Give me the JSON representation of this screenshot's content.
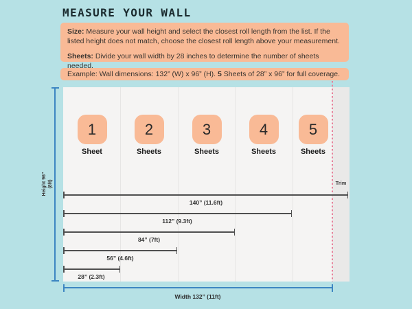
{
  "title": "MEASURE YOUR WALL",
  "instructions": {
    "size_label": "Size:",
    "size_text": " Measure your wall height and select the closest roll length from the list. If the listed height does not match, choose the closest roll length above your measurement.",
    "sheets_label": "Sheets:",
    "sheets_text": " Divide your wall width by 28 inches to determine the number of sheets needed."
  },
  "example": {
    "prefix": "Example: Wall dimensions: 132” (W) x 96” (H). ",
    "bold_number": "5",
    "suffix": " Sheets of 28” x 96” for full coverage."
  },
  "diagram": {
    "sheets": [
      {
        "number": "1",
        "label": "Sheet"
      },
      {
        "number": "2",
        "label": "Sheets"
      },
      {
        "number": "3",
        "label": "Sheets"
      },
      {
        "number": "4",
        "label": "Sheets"
      },
      {
        "number": "5",
        "label": "Sheets"
      }
    ],
    "measurements": [
      {
        "label": "140” (11.6ft)"
      },
      {
        "label": "112” (9.3ft)"
      },
      {
        "label": "84” (7ft)"
      },
      {
        "label": "56” (4.6ft)"
      },
      {
        "label": "28” (2.3ft)"
      }
    ],
    "trim_label": "Trim",
    "height_label_line1": "Height 96”",
    "height_label_line2": "(8ft)",
    "width_label": "Width 132” (11ft)"
  },
  "colors": {
    "background": "#b6e1e5",
    "accent_salmon": "#f9ba96",
    "wall_fill": "#f5f4f3",
    "trim_zone_fill": "#eae9e8",
    "measure_blue": "#3d86c2",
    "trim_dash_pink": "#e8829b",
    "measure_line_dark": "#4f4f4f",
    "title_color": "#1b2b2f"
  }
}
